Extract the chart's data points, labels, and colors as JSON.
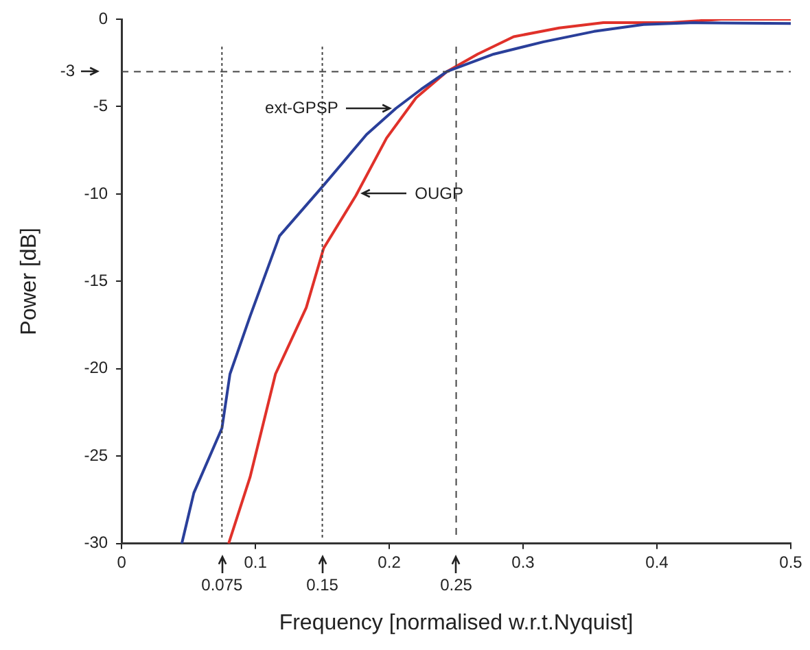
{
  "chart_data": {
    "type": "line",
    "xlabel": "Frequency [normalised w.r.t.Nyquist]",
    "ylabel": "Power [dB]",
    "xlim": [
      0,
      0.5
    ],
    "xticks": [
      0,
      0.1,
      0.2,
      0.3,
      0.4,
      0.5
    ],
    "ylim": [
      -30,
      0
    ],
    "yticks": [
      -30,
      -25,
      -20,
      -15,
      -10,
      -5,
      0
    ],
    "series": [
      {
        "color": "#2a3f9a",
        "x": [
          0.045,
          0.054,
          0.075,
          0.081,
          0.096,
          0.118,
          0.151,
          0.183,
          0.205,
          0.224,
          0.243,
          0.278,
          0.315,
          0.353,
          0.39,
          0.428,
          0.5
        ],
        "values": [
          -30,
          -27.1,
          -23.4,
          -20.3,
          -17,
          -12.4,
          -9.5,
          -6.6,
          -5.1,
          -4,
          -3,
          -2,
          -1.3,
          -0.7,
          -0.3,
          -0.2,
          -0.25
        ]
      },
      {
        "color": "#e0312a",
        "x": [
          0.08,
          0.096,
          0.115,
          0.138,
          0.151,
          0.175,
          0.198,
          0.22,
          0.243,
          0.266,
          0.293,
          0.327,
          0.36,
          0.41,
          0.448,
          0.5
        ],
        "values": [
          -30,
          -26.2,
          -20.3,
          -16.5,
          -13.1,
          -10.1,
          -6.8,
          -4.5,
          -3,
          -2,
          -1,
          -0.5,
          -0.2,
          -0.2,
          0,
          0
        ]
      }
    ],
    "ref_lines": [
      {
        "axis": "y",
        "value": -3,
        "label": "-3",
        "line_style": "dashed"
      },
      {
        "axis": "x",
        "value": 0.075,
        "label": "0.075",
        "line_style": "dotted"
      },
      {
        "axis": "x",
        "value": 0.15,
        "label": "0.15",
        "line_style": "dotted"
      },
      {
        "axis": "x",
        "value": 0.25,
        "label": "0.25",
        "line_style": "dashed"
      }
    ],
    "annotations": [
      {
        "text": "ext-GPSP",
        "x": 0.205,
        "y": -5.1
      },
      {
        "text": "OUGP",
        "x": 0.176,
        "y": -10
      }
    ],
    "grid": false,
    "legend": false,
    "marker": "none",
    "line_style": "solid"
  }
}
